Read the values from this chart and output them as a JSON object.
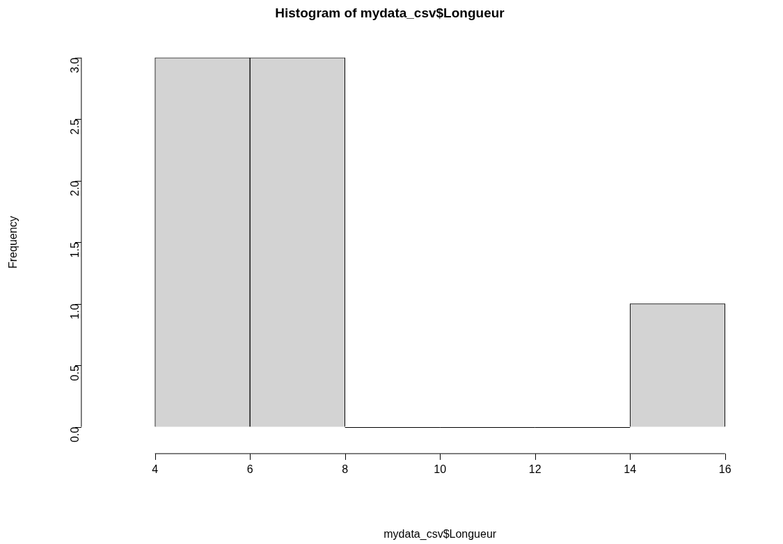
{
  "chart_data": {
    "type": "histogram",
    "title": "Histogram of mydata_csv$Longueur",
    "xlabel": "mydata_csv$Longueur",
    "ylabel": "Frequency",
    "bins": [
      4,
      6,
      8,
      10,
      12,
      14,
      16
    ],
    "values": [
      3,
      3,
      0,
      0,
      0,
      1
    ],
    "color": "#d3d3d3",
    "xlim": [
      4,
      16
    ],
    "xticks": [
      4,
      6,
      8,
      10,
      12,
      14,
      16
    ],
    "ylim": [
      0,
      3
    ],
    "yticks": [
      {
        "value": 0,
        "label": "0.0"
      },
      {
        "value": 0.5,
        "label": "0.5"
      },
      {
        "value": 1,
        "label": "1.0"
      },
      {
        "value": 1.5,
        "label": "1.5"
      },
      {
        "value": 2,
        "label": "2.0"
      },
      {
        "value": 2.5,
        "label": "2.5"
      },
      {
        "value": 3,
        "label": "3.0"
      }
    ],
    "grid": false,
    "legend": false
  }
}
